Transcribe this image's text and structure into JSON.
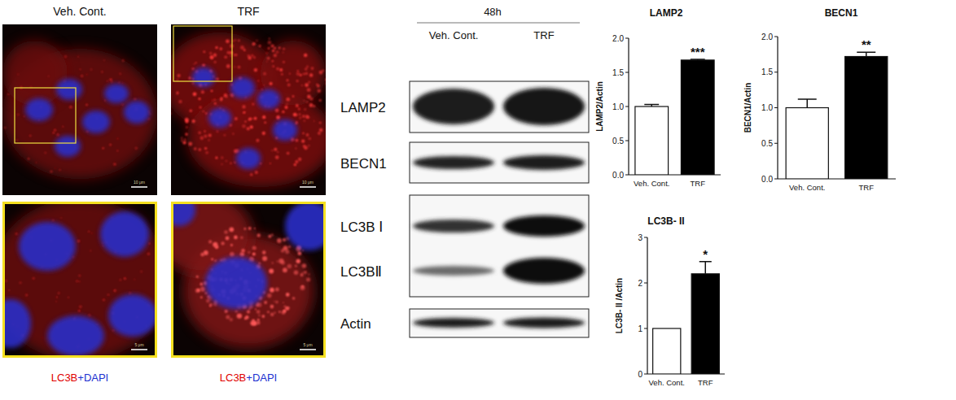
{
  "microscopy": {
    "columns": [
      "Veh. Cont.",
      "TRF"
    ],
    "stain": [
      "LC3B",
      "+DAPI"
    ],
    "scale_bars": [
      "10 μm",
      "5 μm"
    ]
  },
  "blot": {
    "time": "48h",
    "lanes": [
      "Veh. Cont.",
      "TRF"
    ],
    "rows": [
      "LAMP2",
      "BECN1",
      "LC3B Ⅰ",
      "LC3BⅡ",
      "Actin"
    ]
  },
  "chart_data": [
    {
      "type": "bar",
      "title": "LAMP2",
      "categories": [
        "Veh. Cont.",
        "TRF"
      ],
      "values": [
        1.0,
        1.68
      ],
      "errors": [
        0.03,
        0.01
      ],
      "colors": [
        "#ffffff",
        "#000000"
      ],
      "ylim": [
        0,
        2
      ],
      "yticks": [
        {
          "value": 0,
          "label": "0.0"
        },
        {
          "value": 0.5,
          "label": "0.5"
        },
        {
          "value": 1,
          "label": "1.0"
        },
        {
          "value": 1.5,
          "label": "1.5"
        },
        {
          "value": 2,
          "label": "2.0"
        }
      ],
      "y_label": "LAMP2/Actin",
      "annotations": [
        null,
        "***"
      ]
    },
    {
      "type": "bar",
      "title": "BECN1",
      "categories": [
        "Veh. Cont.",
        "TRF"
      ],
      "values": [
        1.0,
        1.72
      ],
      "errors": [
        0.12,
        0.06
      ],
      "colors": [
        "#ffffff",
        "#000000"
      ],
      "ylim": [
        0,
        2
      ],
      "yticks": [
        {
          "value": 0,
          "label": "0.0"
        },
        {
          "value": 0.5,
          "label": "0.5"
        },
        {
          "value": 1,
          "label": "1.0"
        },
        {
          "value": 1.5,
          "label": "1.5"
        },
        {
          "value": 2,
          "label": "2.0"
        }
      ],
      "y_label": "BECN1/Actin",
      "annotations": [
        null,
        "**"
      ]
    },
    {
      "type": "bar",
      "title": "LC3B- II",
      "categories": [
        "Veh. Cont.",
        "TRF"
      ],
      "values": [
        1,
        2.2
      ],
      "errors": [
        null,
        0.27
      ],
      "colors": [
        "#ffffff",
        "#000000"
      ],
      "ylim": [
        0,
        3
      ],
      "yticks": [
        0,
        1,
        2,
        3
      ],
      "y_label": "LC3B- II /Actin",
      "annotations": [
        null,
        "*"
      ]
    }
  ]
}
